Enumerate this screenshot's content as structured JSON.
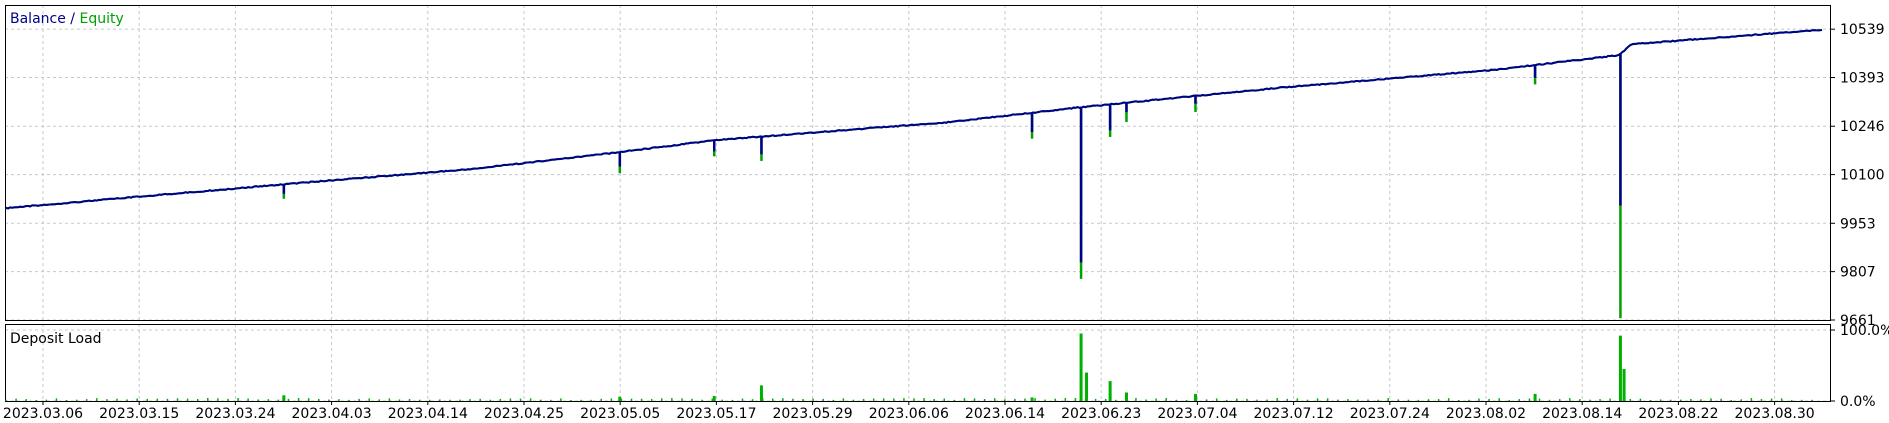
{
  "colors": {
    "balance": "#00008b",
    "equity": "#00a000",
    "deposit_load": "#00b000",
    "grid": "#c8c8c8",
    "axis": "#000000",
    "background": "#ffffff"
  },
  "legend": {
    "balance_label": "Balance",
    "separator": " / ",
    "equity_label": "Equity"
  },
  "lower_panel_title": "Deposit Load",
  "chart_data": [
    {
      "type": "line",
      "title": "Balance / Equity",
      "series": [
        {
          "name": "Balance",
          "line": "balance"
        },
        {
          "name": "Equity",
          "line": "equity"
        }
      ],
      "x": [
        "2023.03.06",
        "2023.03.15",
        "2023.03.24",
        "2023.04.03",
        "2023.04.14",
        "2023.04.25",
        "2023.05.05",
        "2023.05.17",
        "2023.05.29",
        "2023.06.06",
        "2023.06.14",
        "2023.06.23",
        "2023.07.04",
        "2023.07.12",
        "2023.07.24",
        "2023.08.02",
        "2023.08.14",
        "2023.08.22",
        "2023.08.30"
      ],
      "trend": [
        {
          "x": 0.0,
          "y": 10000
        },
        {
          "x": 0.084,
          "y": 10040
        },
        {
          "x": 0.168,
          "y": 10079
        },
        {
          "x": 0.256,
          "y": 10118
        },
        {
          "x": 0.333,
          "y": 10166
        },
        {
          "x": 0.39,
          "y": 10205
        },
        {
          "x": 0.42,
          "y": 10218
        },
        {
          "x": 0.52,
          "y": 10260
        },
        {
          "x": 0.59,
          "y": 10304
        },
        {
          "x": 0.655,
          "y": 10339
        },
        {
          "x": 0.7,
          "y": 10363
        },
        {
          "x": 0.82,
          "y": 10418
        },
        {
          "x": 0.888,
          "y": 10462
        },
        {
          "x": 0.895,
          "y": 10495
        },
        {
          "x": 1.0,
          "y": 10539
        }
      ],
      "drawdowns": [
        {
          "x": 0.153,
          "depth_balance": 30,
          "depth_equity": 45
        },
        {
          "x": 0.338,
          "depth_balance": 45,
          "depth_equity": 65
        },
        {
          "x": 0.39,
          "depth_balance": 35,
          "depth_equity": 50
        },
        {
          "x": 0.416,
          "depth_balance": 55,
          "depth_equity": 75
        },
        {
          "x": 0.565,
          "depth_balance": 60,
          "depth_equity": 80
        },
        {
          "x": 0.592,
          "depth_balance": 470,
          "depth_equity": 520
        },
        {
          "x": 0.608,
          "depth_balance": 80,
          "depth_equity": 100
        },
        {
          "x": 0.617,
          "depth_balance": 30,
          "depth_equity": 60
        },
        {
          "x": 0.655,
          "depth_balance": 25,
          "depth_equity": 50
        },
        {
          "x": 0.842,
          "depth_balance": 40,
          "depth_equity": 60
        },
        {
          "x": 0.889,
          "depth_balance": 460,
          "depth_equity": 800
        }
      ],
      "xlabel": "",
      "ylabel": "",
      "ylim": [
        9661,
        10612
      ],
      "y_ticks": [
        10539,
        10393,
        10246,
        10100,
        9953,
        9807,
        9661
      ],
      "grid": true,
      "legend_position": "top-left"
    },
    {
      "type": "bar",
      "title": "Deposit Load",
      "y_ticks": [
        "100.0%",
        "0.0%"
      ],
      "ylim": [
        0,
        100
      ],
      "spikes": [
        {
          "x": 0.153,
          "value": 8
        },
        {
          "x": 0.338,
          "value": 6
        },
        {
          "x": 0.39,
          "value": 7
        },
        {
          "x": 0.416,
          "value": 22
        },
        {
          "x": 0.565,
          "value": 5
        },
        {
          "x": 0.592,
          "value": 95
        },
        {
          "x": 0.595,
          "value": 40
        },
        {
          "x": 0.608,
          "value": 28
        },
        {
          "x": 0.617,
          "value": 12
        },
        {
          "x": 0.655,
          "value": 10
        },
        {
          "x": 0.842,
          "value": 10
        },
        {
          "x": 0.889,
          "value": 92
        },
        {
          "x": 0.891,
          "value": 45
        }
      ],
      "grid": true
    }
  ]
}
